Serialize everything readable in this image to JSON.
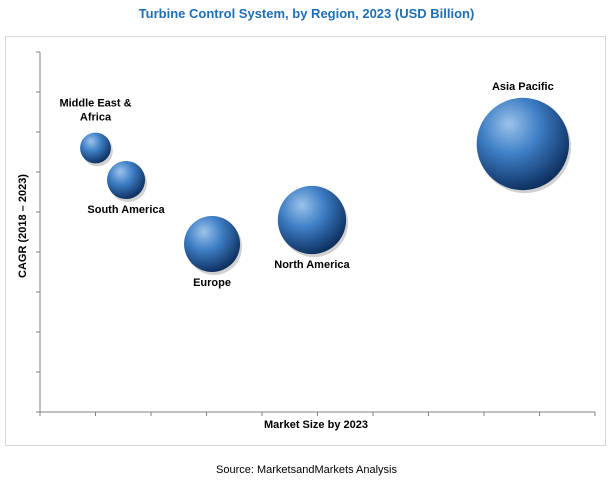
{
  "chart_data": {
    "type": "scatter",
    "title": "Turbine Control System, by Region, 2023 (USD Billion)",
    "xlabel": "Market Size by 2023",
    "ylabel": "CAGR (2018 – 2023)",
    "xlim": [
      0,
      10
    ],
    "ylim": [
      0,
      9
    ],
    "grid": false,
    "points": [
      {
        "label": "Middle East  &",
        "label2": "Africa",
        "x": 1.0,
        "y": 6.6,
        "size": 0.55,
        "label_pos": "above"
      },
      {
        "label": "South America",
        "x": 1.55,
        "y": 5.8,
        "size": 0.68,
        "label_pos": "below"
      },
      {
        "label": "Europe",
        "x": 3.1,
        "y": 4.2,
        "size": 1.0,
        "label_pos": "below"
      },
      {
        "label": "North America",
        "x": 4.9,
        "y": 4.8,
        "size": 1.22,
        "label_pos": "below"
      },
      {
        "label": "Asia Pacific",
        "x": 8.7,
        "y": 6.7,
        "size": 1.65,
        "label_pos": "above"
      }
    ]
  },
  "source": "Source: MarketsandMarkets Analysis",
  "colors": {
    "title": "#1f6fb5",
    "bubble_light": "#9cc3ea",
    "bubble_mid": "#3f7fc6",
    "bubble_dark": "#0d2f5e",
    "axis": "#808080"
  }
}
